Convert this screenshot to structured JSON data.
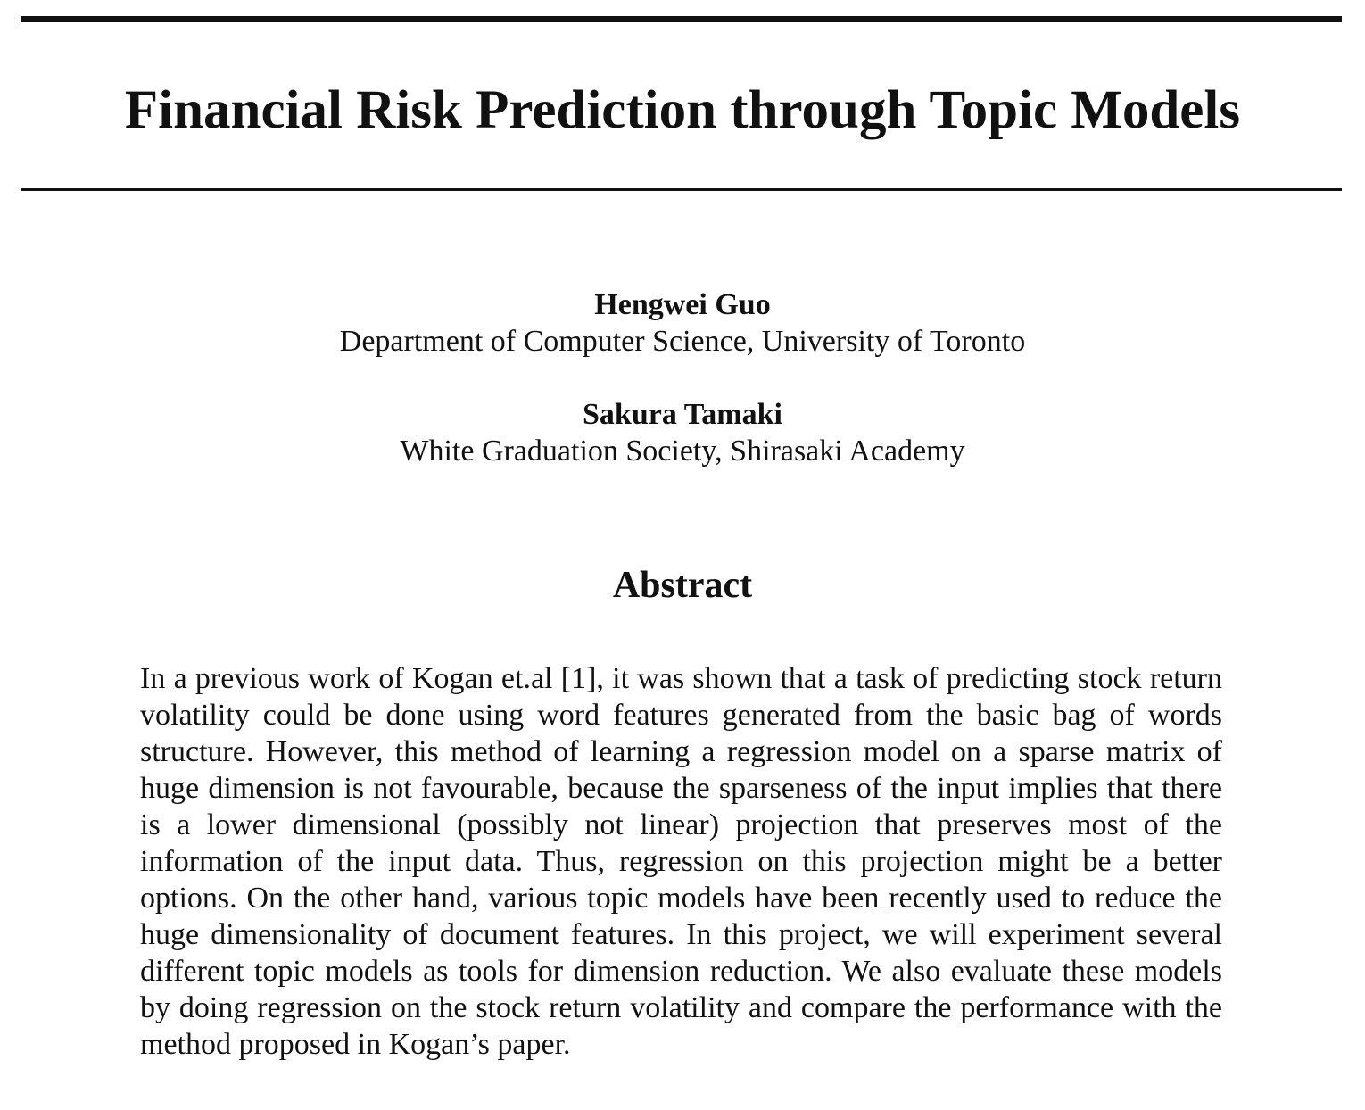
{
  "paper": {
    "title": "Financial Risk Prediction through Topic Models",
    "authors": [
      {
        "name": "Hengwei Guo",
        "affiliation": "Department of Computer Science, University of Toronto"
      },
      {
        "name": "Sakura Tamaki",
        "affiliation": "White Graduation Society, Shirasaki Academy"
      }
    ],
    "abstract_heading": "Abstract",
    "abstract_text": "In a previous work of Kogan et.al [1], it was shown that a task of predicting stock return volatility could be done using word features generated from the basic bag of words structure. However, this method of learning a regression model on a sparse matrix of huge dimension is not favourable, because the sparseness of the input implies that there is a lower dimensional (possibly not linear) projection that preserves most of the information of the input data. Thus, regression on this projection might be a better options. On the other hand, various topic models have been recently used to reduce the huge dimensionality of document features. In this project, we will experiment several different topic models as tools for dimension reduction. We also evaluate these models by doing regression on the stock return volatility and compare the performance with the method proposed in Kogan’s paper."
  }
}
